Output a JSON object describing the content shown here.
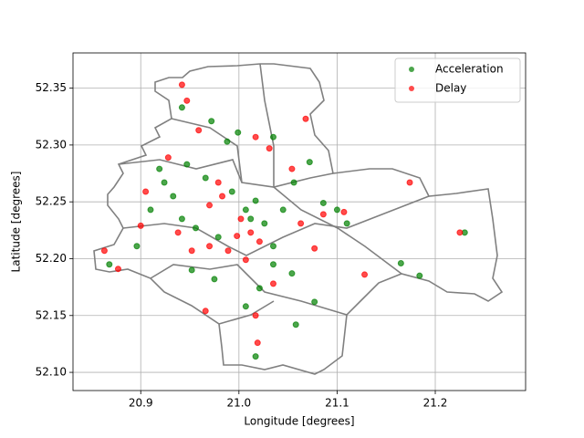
{
  "chart_data": {
    "type": "scatter",
    "xlabel": "Longitude [degrees]",
    "ylabel": "Latitude [degrees]",
    "xlim": [
      20.831,
      21.292
    ],
    "ylim": [
      52.084,
      52.381
    ],
    "xticks": [
      20.9,
      {
        "value": 21.0,
        "label": "21.0"
      },
      21.1,
      21.2
    ],
    "yticks": [
      {
        "value": 52.1,
        "label": "52.10"
      },
      52.15,
      {
        "value": 52.2,
        "label": "52.20"
      },
      52.25,
      {
        "value": 52.3,
        "label": "52.30"
      },
      52.35
    ],
    "grid": true,
    "legend": "upper right",
    "series": [
      {
        "name": "Acceleration",
        "color": "#008000",
        "x": [
          20.942,
          20.972,
          20.988,
          20.999,
          21.035,
          21.072,
          21.056,
          21.017,
          21.007,
          21.012,
          21.026,
          21.045,
          21.086,
          21.1,
          20.924,
          20.919,
          20.91,
          20.942,
          20.956,
          20.979,
          21.035,
          21.054,
          21.077,
          21.058,
          21.017,
          21.007,
          20.975,
          20.952,
          20.896,
          20.868,
          21.165,
          21.184,
          21.23,
          21.11,
          20.993,
          20.966,
          20.947,
          20.933,
          21.035,
          21.021
        ],
        "values": [
          52.333,
          52.321,
          52.303,
          52.311,
          52.307,
          52.285,
          52.267,
          52.251,
          52.243,
          52.235,
          52.231,
          52.243,
          52.249,
          52.243,
          52.267,
          52.279,
          52.243,
          52.235,
          52.227,
          52.219,
          52.195,
          52.187,
          52.162,
          52.142,
          52.114,
          52.158,
          52.182,
          52.19,
          52.211,
          52.195,
          52.196,
          52.185,
          52.223,
          52.231,
          52.259,
          52.271,
          52.283,
          52.255,
          52.211,
          52.174
        ]
      },
      {
        "name": "Delay",
        "color": "#ff0000",
        "x": [
          20.942,
          20.947,
          20.959,
          21.068,
          21.017,
          21.031,
          20.928,
          20.979,
          20.983,
          21.002,
          21.012,
          21.021,
          21.063,
          21.086,
          21.107,
          20.905,
          20.9,
          20.877,
          20.863,
          20.97,
          20.989,
          21.035,
          21.017,
          20.966,
          21.128,
          21.174,
          21.225,
          21.054,
          20.998,
          20.97,
          21.007,
          21.077,
          21.019,
          20.938,
          20.952
        ],
        "values": [
          52.353,
          52.339,
          52.313,
          52.323,
          52.307,
          52.297,
          52.289,
          52.267,
          52.255,
          52.235,
          52.223,
          52.215,
          52.231,
          52.239,
          52.241,
          52.259,
          52.229,
          52.191,
          52.207,
          52.211,
          52.207,
          52.178,
          52.15,
          52.154,
          52.186,
          52.267,
          52.223,
          52.279,
          52.22,
          52.247,
          52.199,
          52.209,
          52.126,
          52.223,
          52.207
        ]
      }
    ]
  }
}
